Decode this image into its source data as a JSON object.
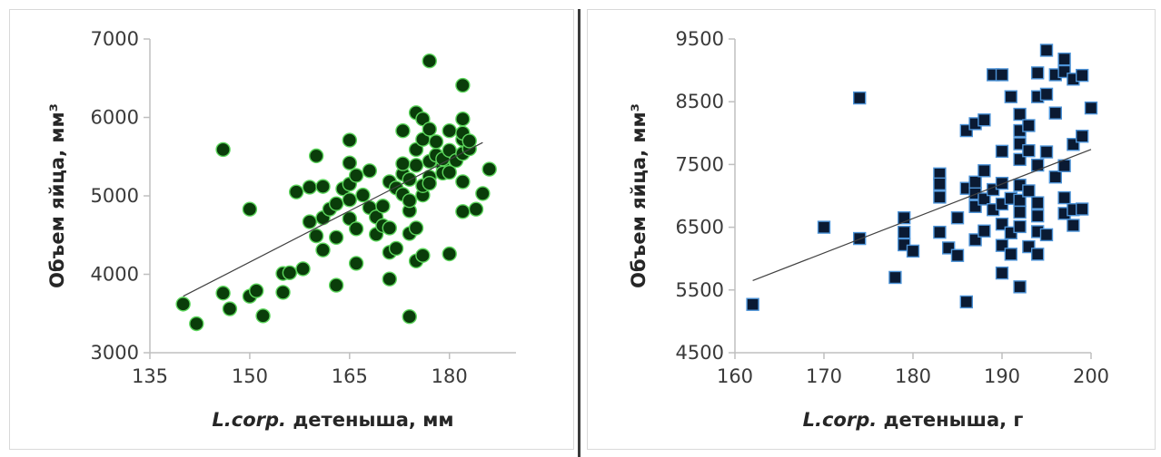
{
  "chart_data": [
    {
      "type": "scatter",
      "ylabel": "Объем яйца, мм³",
      "xlabel_italic": "L.corp.",
      "xlabel_rest": " детеныша, мм",
      "xlim": [
        135,
        190
      ],
      "ylim": [
        3000,
        7000
      ],
      "xticks": [
        135,
        150,
        165,
        180
      ],
      "yticks": [
        3000,
        4000,
        5000,
        6000,
        7000
      ],
      "trendline": [
        [
          140,
          3720
        ],
        [
          185,
          5680
        ]
      ],
      "marker": "circle",
      "marker_fill": "#0a3d0a",
      "marker_edge": "#5cd65c",
      "points": [
        [
          140,
          3620
        ],
        [
          142,
          3370
        ],
        [
          146,
          3760
        ],
        [
          146,
          5590
        ],
        [
          147,
          3560
        ],
        [
          150,
          4830
        ],
        [
          150,
          3720
        ],
        [
          151,
          3790
        ],
        [
          152,
          3470
        ],
        [
          155,
          3770
        ],
        [
          155,
          4010
        ],
        [
          156,
          4020
        ],
        [
          157,
          5050
        ],
        [
          158,
          4070
        ],
        [
          159,
          5110
        ],
        [
          159,
          4670
        ],
        [
          160,
          4490
        ],
        [
          160,
          5510
        ],
        [
          161,
          4310
        ],
        [
          161,
          4720
        ],
        [
          161,
          5120
        ],
        [
          162,
          4830
        ],
        [
          163,
          4470
        ],
        [
          163,
          3860
        ],
        [
          163,
          4900
        ],
        [
          164,
          5090
        ],
        [
          165,
          5710
        ],
        [
          165,
          5420
        ],
        [
          165,
          5150
        ],
        [
          165,
          4950
        ],
        [
          165,
          4710
        ],
        [
          166,
          4580
        ],
        [
          166,
          4140
        ],
        [
          166,
          5260
        ],
        [
          167,
          5010
        ],
        [
          168,
          4850
        ],
        [
          168,
          5320
        ],
        [
          169,
          4730
        ],
        [
          169,
          4510
        ],
        [
          170,
          4620
        ],
        [
          170,
          4870
        ],
        [
          171,
          5180
        ],
        [
          171,
          3940
        ],
        [
          171,
          4280
        ],
        [
          171,
          4590
        ],
        [
          172,
          4330
        ],
        [
          172,
          5100
        ],
        [
          173,
          5280
        ],
        [
          173,
          5020
        ],
        [
          173,
          5410
        ],
        [
          173,
          5830
        ],
        [
          174,
          4810
        ],
        [
          174,
          4940
        ],
        [
          174,
          5210
        ],
        [
          174,
          4520
        ],
        [
          174,
          3460
        ],
        [
          175,
          5390
        ],
        [
          175,
          5590
        ],
        [
          175,
          6060
        ],
        [
          175,
          4170
        ],
        [
          175,
          4590
        ],
        [
          176,
          5010
        ],
        [
          176,
          5130
        ],
        [
          176,
          5720
        ],
        [
          176,
          5980
        ],
        [
          176,
          4240
        ],
        [
          177,
          5240
        ],
        [
          177,
          5440
        ],
        [
          177,
          5160
        ],
        [
          177,
          5850
        ],
        [
          177,
          6720
        ],
        [
          178,
          5520
        ],
        [
          178,
          5690
        ],
        [
          179,
          5380
        ],
        [
          179,
          5470
        ],
        [
          179,
          5290
        ],
        [
          180,
          5580
        ],
        [
          180,
          5300
        ],
        [
          180,
          5830
        ],
        [
          180,
          4260
        ],
        [
          181,
          5450
        ],
        [
          182,
          5540
        ],
        [
          182,
          5720
        ],
        [
          182,
          5980
        ],
        [
          182,
          6410
        ],
        [
          182,
          5180
        ],
        [
          182,
          4800
        ],
        [
          182,
          5800
        ],
        [
          183,
          5600
        ],
        [
          183,
          5700
        ],
        [
          184,
          4830
        ],
        [
          185,
          5030
        ],
        [
          186,
          5340
        ]
      ]
    },
    {
      "type": "scatter",
      "ylabel": "Объем яйца, мм³",
      "xlabel_italic": "L.corp.",
      "xlabel_rest": " детеныша, г",
      "xlim": [
        160,
        200
      ],
      "ylim": [
        4500,
        9500
      ],
      "xticks": [
        160,
        170,
        180,
        190,
        200
      ],
      "yticks": [
        4500,
        5500,
        6500,
        7500,
        8500,
        9500
      ],
      "trendline": [
        [
          162,
          5650
        ],
        [
          200,
          7740
        ]
      ],
      "marker": "square",
      "marker_fill": "#0a1a33",
      "marker_edge": "#4d94d9",
      "points": [
        [
          162,
          5270
        ],
        [
          170,
          6500
        ],
        [
          174,
          6320
        ],
        [
          174,
          8560
        ],
        [
          178,
          5700
        ],
        [
          179,
          6650
        ],
        [
          179,
          6420
        ],
        [
          179,
          6220
        ],
        [
          180,
          6120
        ],
        [
          183,
          7350
        ],
        [
          183,
          7190
        ],
        [
          183,
          6980
        ],
        [
          183,
          6420
        ],
        [
          184,
          6170
        ],
        [
          185,
          6050
        ],
        [
          185,
          6650
        ],
        [
          186,
          7120
        ],
        [
          186,
          8040
        ],
        [
          186,
          5310
        ],
        [
          187,
          7040
        ],
        [
          187,
          6830
        ],
        [
          187,
          6300
        ],
        [
          187,
          8150
        ],
        [
          187,
          7220
        ],
        [
          188,
          8210
        ],
        [
          188,
          7400
        ],
        [
          188,
          6950
        ],
        [
          188,
          6440
        ],
        [
          189,
          7100
        ],
        [
          189,
          6780
        ],
        [
          189,
          8930
        ],
        [
          190,
          8930
        ],
        [
          190,
          7710
        ],
        [
          190,
          7200
        ],
        [
          190,
          6870
        ],
        [
          190,
          6550
        ],
        [
          190,
          6210
        ],
        [
          190,
          5770
        ],
        [
          191,
          8580
        ],
        [
          191,
          6960
        ],
        [
          191,
          6410
        ],
        [
          191,
          6070
        ],
        [
          192,
          8300
        ],
        [
          192,
          8040
        ],
        [
          192,
          7830
        ],
        [
          192,
          7580
        ],
        [
          192,
          7170
        ],
        [
          192,
          6930
        ],
        [
          192,
          6740
        ],
        [
          192,
          6510
        ],
        [
          192,
          5550
        ],
        [
          193,
          8120
        ],
        [
          193,
          7720
        ],
        [
          193,
          7080
        ],
        [
          193,
          6190
        ],
        [
          194,
          8960
        ],
        [
          194,
          8580
        ],
        [
          194,
          7490
        ],
        [
          194,
          6890
        ],
        [
          194,
          6680
        ],
        [
          194,
          6430
        ],
        [
          194,
          6070
        ],
        [
          195,
          9320
        ],
        [
          195,
          8620
        ],
        [
          195,
          7700
        ],
        [
          195,
          6380
        ],
        [
          196,
          8930
        ],
        [
          196,
          8320
        ],
        [
          196,
          7300
        ],
        [
          197,
          9180
        ],
        [
          197,
          8980
        ],
        [
          197,
          7480
        ],
        [
          197,
          6970
        ],
        [
          197,
          6720
        ],
        [
          198,
          8860
        ],
        [
          198,
          7820
        ],
        [
          198,
          6780
        ],
        [
          198,
          6530
        ],
        [
          199,
          8920
        ],
        [
          199,
          7950
        ],
        [
          199,
          6790
        ],
        [
          200,
          8400
        ]
      ]
    }
  ]
}
